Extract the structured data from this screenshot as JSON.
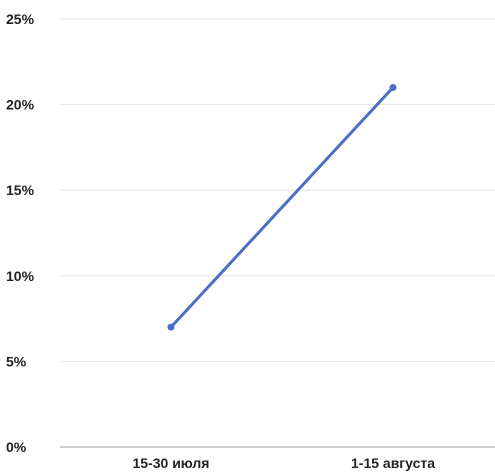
{
  "chart_data": {
    "type": "line",
    "categories": [
      "15-30 июля",
      "1-15 августа"
    ],
    "series": [
      {
        "values": [
          7,
          21
        ]
      }
    ],
    "y_ticks": [
      "0%",
      "5%",
      "10%",
      "15%",
      "20%",
      "25%"
    ],
    "y_tick_values": [
      0,
      5,
      10,
      15,
      20,
      25
    ],
    "ylim": [
      0,
      25
    ],
    "unit": "%",
    "grid": true,
    "legend": "none",
    "line_color": "#4a6fc4"
  }
}
